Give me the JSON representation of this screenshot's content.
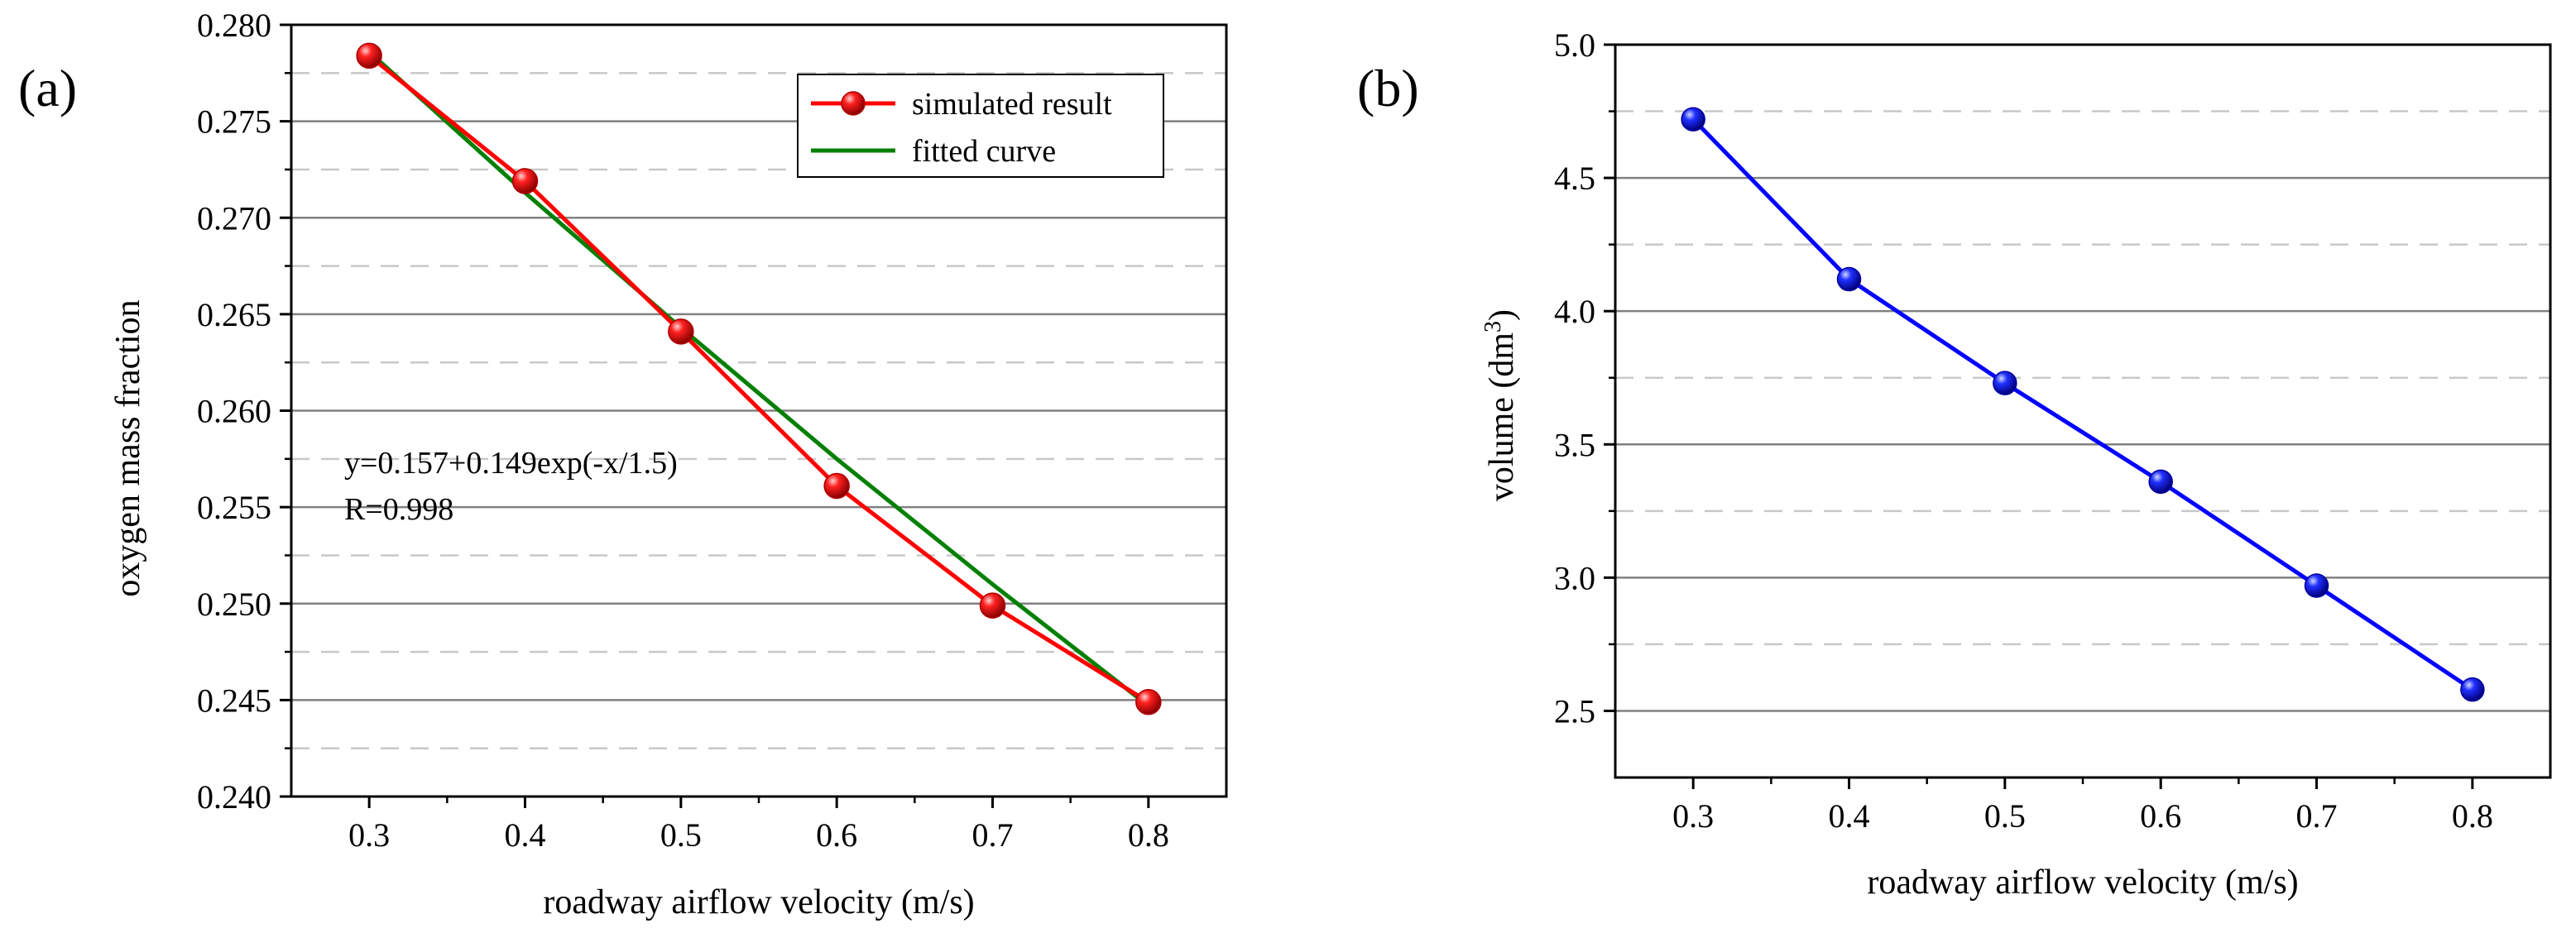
{
  "chart_data": [
    {
      "panel_label": "(a)",
      "type": "line",
      "xlabel": "roadway airflow velocity (m/s)",
      "ylabel": "oxygen mass fraction",
      "xlim": [
        0.25,
        0.85
      ],
      "ylim": [
        0.24,
        0.28
      ],
      "x_ticks": [
        "0.3",
        "0.4",
        "0.5",
        "0.6",
        "0.7",
        "0.8"
      ],
      "y_ticks": [
        "0.240",
        "0.245",
        "0.250",
        "0.255",
        "0.260",
        "0.265",
        "0.270",
        "0.275",
        "0.280"
      ],
      "grid": {
        "major": true,
        "minor_dashed": true,
        "axis": "y"
      },
      "legend_position": "top-right",
      "series": [
        {
          "name": "simulated result",
          "color": "#ff0000",
          "marker": "sphere",
          "x": [
            0.3,
            0.4,
            0.5,
            0.6,
            0.7,
            0.8
          ],
          "y": [
            0.2784,
            0.2719,
            0.2641,
            0.2561,
            0.2499,
            0.2449
          ]
        },
        {
          "name": "fitted curve",
          "color": "#008000",
          "marker": "none",
          "x": [
            0.3,
            0.4,
            0.5,
            0.6,
            0.7,
            0.8
          ],
          "y": [
            0.2786,
            0.2713,
            0.2643,
            0.2575,
            0.251,
            0.2447
          ]
        }
      ],
      "annotations": [
        "y=0.157+0.149exp(-x/1.5)",
        "R=0.998"
      ]
    },
    {
      "panel_label": "(b)",
      "type": "line",
      "xlabel": "roadway airflow velocity (m/s)",
      "ylabel": "volume (dm",
      "ylabel_superscript": "3",
      "ylabel_suffix": ")",
      "xlim": [
        0.25,
        0.85
      ],
      "ylim": [
        2.25,
        5.0
      ],
      "x_ticks": [
        "0.3",
        "0.4",
        "0.5",
        "0.6",
        "0.7",
        "0.8"
      ],
      "y_ticks": [
        "2.5",
        "3.0",
        "3.5",
        "4.0",
        "4.5",
        "5.0"
      ],
      "grid": {
        "major": true,
        "minor_dashed": true,
        "axis": "y"
      },
      "series": [
        {
          "color": "#0000ff",
          "marker": "sphere",
          "x": [
            0.3,
            0.4,
            0.5,
            0.6,
            0.7,
            0.8
          ],
          "y": [
            4.72,
            4.12,
            3.73,
            3.36,
            2.97,
            2.58
          ]
        }
      ]
    }
  ]
}
